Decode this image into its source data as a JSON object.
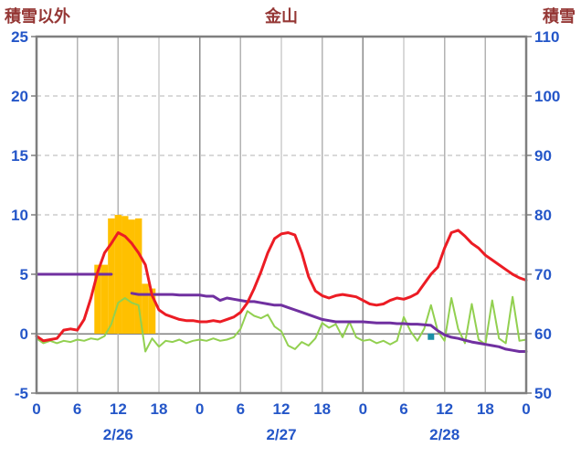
{
  "header": {
    "left_axis_title": "積雪以外",
    "chart_title": "金山",
    "right_axis_title": "積雪"
  },
  "chart_data": {
    "type": "line",
    "title": "金山",
    "grid": true,
    "legend": "none",
    "left_axis": {
      "label": "積雪以外",
      "min": -5,
      "max": 25,
      "tick_step": 5,
      "ticks": [
        -5,
        0,
        5,
        10,
        15,
        20,
        25
      ]
    },
    "right_axis": {
      "label": "積雪",
      "min": 50,
      "max": 110,
      "tick_step": 10,
      "ticks": [
        50,
        60,
        70,
        80,
        90,
        100,
        110
      ]
    },
    "x_axis": {
      "min_hour": 0,
      "max_hour": 72,
      "tick_step": 6,
      "hour_labels": [
        "0",
        "6",
        "12",
        "18",
        "0",
        "6",
        "12",
        "18",
        "0",
        "6",
        "12",
        "18",
        "0"
      ],
      "date_labels": [
        {
          "label": "2/26",
          "hour": 12
        },
        {
          "label": "2/27",
          "hour": 36
        },
        {
          "label": "2/28",
          "hour": 60
        }
      ]
    },
    "colors": {
      "title": "#953735",
      "tick": "#2456C8",
      "frame": "#7F7F7F",
      "grid": "#B3B3B3",
      "day_grid": "#8C8C8C",
      "zero_line": "#808080",
      "temperature": "#EC1C24",
      "green_series": "#92D050",
      "snow_depth": "#7030A0",
      "snowfall_bar": "#FFC000",
      "marker": "#1C8FA6"
    },
    "series": [
      {
        "name": "snowfall-bars",
        "type": "bar",
        "axis": "left",
        "color": "#FFC000",
        "points": [
          [
            9,
            5.8
          ],
          [
            10,
            5.8
          ],
          [
            11,
            9.7
          ],
          [
            12,
            10.0
          ],
          [
            13,
            9.9
          ],
          [
            14,
            9.6
          ],
          [
            15,
            9.7
          ],
          [
            16,
            4.2
          ],
          [
            17,
            3.8
          ]
        ]
      },
      {
        "name": "green-series",
        "type": "line",
        "axis": "left",
        "color": "#92D050",
        "width": 2,
        "values": [
          -0.4,
          -0.8,
          -0.6,
          -0.8,
          -0.6,
          -0.7,
          -0.5,
          -0.6,
          -0.4,
          -0.5,
          -0.2,
          0.8,
          2.6,
          3.0,
          2.6,
          2.4,
          -1.5,
          -0.4,
          -1.1,
          -0.6,
          -0.7,
          -0.5,
          -0.8,
          -0.6,
          -0.5,
          -0.6,
          -0.4,
          -0.6,
          -0.5,
          -0.3,
          0.4,
          1.9,
          1.5,
          1.3,
          1.6,
          0.6,
          0.2,
          -1.0,
          -1.3,
          -0.7,
          -1.0,
          -0.4,
          0.9,
          0.5,
          0.8,
          -0.3,
          1.0,
          -0.3,
          -0.6,
          -0.5,
          -0.8,
          -0.6,
          -0.9,
          -0.6,
          1.4,
          0.2,
          -0.6,
          0.4,
          2.4,
          0.2,
          -0.6,
          3.0,
          0.4,
          -0.8,
          2.5,
          -0.5,
          -0.9,
          2.8,
          -0.4,
          -0.8,
          3.1,
          -0.6,
          -0.5
        ]
      },
      {
        "name": "snow-depth",
        "type": "line",
        "axis": "right",
        "color": "#7030A0",
        "width": 3,
        "values": [
          70,
          70,
          70,
          70,
          70,
          70,
          70,
          70,
          70,
          70,
          70,
          70,
          null,
          null,
          66.8,
          66.6,
          66.6,
          66.6,
          66.6,
          66.6,
          66.6,
          66.5,
          66.5,
          66.5,
          66.5,
          66.3,
          66.3,
          65.6,
          66.0,
          65.8,
          65.6,
          65.4,
          65.4,
          65.2,
          65.0,
          64.8,
          64.8,
          64.4,
          64.0,
          63.6,
          63.2,
          62.8,
          62.4,
          62.2,
          62.0,
          62.0,
          62.0,
          62.0,
          62.0,
          61.9,
          61.8,
          61.8,
          61.8,
          61.7,
          61.7,
          61.6,
          61.6,
          61.5,
          61.4,
          60.5,
          59.8,
          59.4,
          59.2,
          58.9,
          58.6,
          58.4,
          58.2,
          58.0,
          57.8,
          57.4,
          57.2,
          57.0,
          57.0
        ]
      },
      {
        "name": "temperature",
        "type": "line",
        "axis": "left",
        "color": "#EC1C24",
        "width": 3,
        "values": [
          -0.2,
          -0.6,
          -0.5,
          -0.4,
          0.3,
          0.4,
          0.3,
          1.2,
          3.0,
          5.2,
          6.8,
          7.6,
          8.5,
          8.2,
          7.6,
          6.8,
          5.8,
          3.2,
          2.0,
          1.6,
          1.4,
          1.2,
          1.1,
          1.1,
          1.0,
          1.0,
          1.1,
          1.0,
          1.2,
          1.4,
          1.8,
          2.6,
          3.8,
          5.2,
          6.8,
          8.0,
          8.4,
          8.5,
          8.3,
          6.8,
          4.8,
          3.6,
          3.2,
          3.0,
          3.2,
          3.3,
          3.2,
          3.1,
          2.8,
          2.5,
          2.4,
          2.5,
          2.8,
          3.0,
          2.9,
          3.1,
          3.4,
          4.2,
          5.0,
          5.6,
          7.2,
          8.5,
          8.7,
          8.2,
          7.6,
          7.2,
          6.6,
          6.2,
          5.8,
          5.4,
          5.0,
          4.7,
          4.5
        ]
      },
      {
        "name": "teal-marker",
        "type": "point",
        "axis": "left",
        "color": "#1C8FA6",
        "x": 58,
        "y": -0.25,
        "size": 7
      }
    ]
  }
}
